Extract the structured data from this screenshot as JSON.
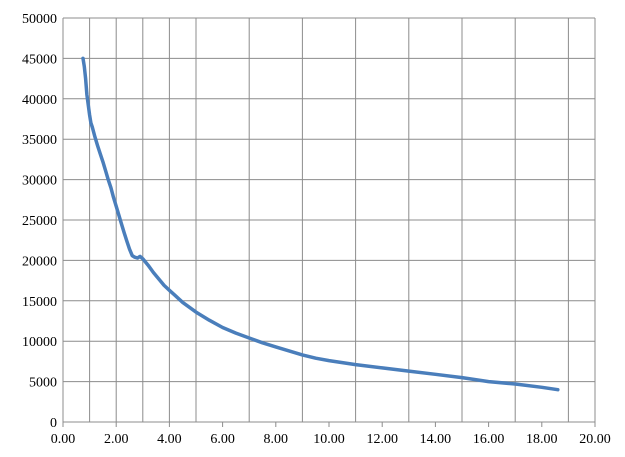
{
  "chart_data": {
    "type": "line",
    "title": "",
    "xlabel": "",
    "ylabel": "",
    "xlim": [
      0,
      20
    ],
    "ylim": [
      0,
      50000
    ],
    "x_ticks": [
      "0.00",
      "2.00",
      "4.00",
      "6.00",
      "8.00",
      "10.00",
      "12.00",
      "14.00",
      "16.00",
      "18.00",
      "20.00"
    ],
    "y_ticks": [
      "0",
      "5000",
      "10000",
      "15000",
      "20000",
      "25000",
      "30000",
      "35000",
      "40000",
      "45000",
      "50000"
    ],
    "x_gridlines": [
      0,
      1,
      2,
      3,
      4,
      5,
      7,
      9,
      11,
      13,
      15,
      17,
      19,
      20
    ],
    "grid": true,
    "legend": "none",
    "colors": {
      "series": "#4a7ebb",
      "grid": "#8c8c8c"
    },
    "series": [
      {
        "x": [
          0.75,
          0.8,
          0.85,
          0.9,
          0.95,
          1.0,
          1.05,
          1.1,
          1.2,
          1.3,
          1.4,
          1.5,
          1.6,
          1.7,
          1.8,
          1.9,
          2.0,
          2.1,
          2.2,
          2.3,
          2.4,
          2.5,
          2.6,
          2.7,
          2.8,
          2.9,
          3.0,
          3.2,
          3.4,
          3.6,
          3.8,
          4.0,
          4.2,
          4.5,
          5.0,
          5.5,
          6.0,
          6.5,
          7.0,
          7.5,
          8.0,
          8.5,
          9.0,
          9.5,
          10.0,
          11.0,
          12.0,
          13.0,
          14.0,
          15.0,
          16.0,
          17.0,
          18.0,
          18.6
        ],
        "y": [
          45000,
          44000,
          42500,
          40500,
          39200,
          38000,
          37000,
          36500,
          35300,
          34200,
          33200,
          32200,
          31100,
          30000,
          29000,
          27800,
          26700,
          25600,
          24500,
          23400,
          22400,
          21400,
          20600,
          20400,
          20300,
          20500,
          20200,
          19400,
          18500,
          17700,
          16900,
          16300,
          15700,
          14800,
          13600,
          12600,
          11700,
          11000,
          10400,
          9800,
          9300,
          8800,
          8300,
          7900,
          7600,
          7100,
          6700,
          6300,
          5900,
          5500,
          5000,
          4700,
          4300,
          4000
        ]
      }
    ]
  }
}
